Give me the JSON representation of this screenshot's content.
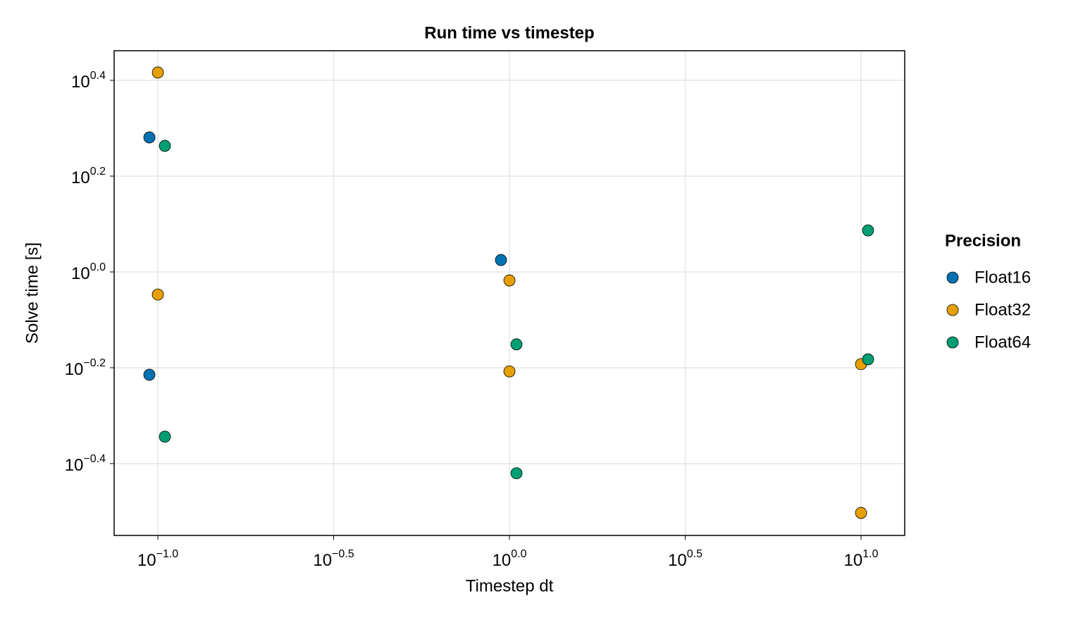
{
  "chart_data": {
    "type": "scatter",
    "title": "Run time vs timestep",
    "x_label": "Timestep dt",
    "y_label": "Solve time [s]",
    "log_x": true,
    "log_y": true,
    "grid": true,
    "legend_title": "Precision",
    "legend_position": "right",
    "xlim": [
      0.0751,
      13.31
    ],
    "ylim": [
      0.2818,
      2.896
    ],
    "xticks": [
      {
        "value": 0.1,
        "label": "10^−1.0"
      },
      {
        "value": 0.3162,
        "label": "10^−0.5"
      },
      {
        "value": 1,
        "label": "10^0.0"
      },
      {
        "value": 3.1623,
        "label": "10^0.5"
      },
      {
        "value": 10,
        "label": "10^1.0"
      }
    ],
    "yticks": [
      {
        "value": 0.3981,
        "label": "10^−0.4"
      },
      {
        "value": 0.631,
        "label": "10^−0.2"
      },
      {
        "value": 1,
        "label": "10^0.0"
      },
      {
        "value": 1.585,
        "label": "10^0.2"
      },
      {
        "value": 2.512,
        "label": "10^0.4"
      }
    ],
    "series": [
      {
        "name": "Float16",
        "color": "#0072b2",
        "x": [
          0.0946,
          0.0946,
          0.946
        ],
        "values": [
          1.909,
          0.61,
          1.059
        ]
      },
      {
        "name": "Float32",
        "color": "#e69f00",
        "x": [
          0.1,
          0.1,
          1,
          1,
          10,
          10
        ],
        "values": [
          2.608,
          0.897,
          0.96,
          0.62,
          0.642,
          0.314
        ]
      },
      {
        "name": "Float64",
        "color": "#009e73",
        "x": [
          0.1047,
          0.1047,
          1.047,
          1.047,
          10.47,
          10.47
        ],
        "values": [
          1.833,
          0.453,
          0.706,
          0.38,
          1.221,
          0.657
        ]
      }
    ]
  }
}
